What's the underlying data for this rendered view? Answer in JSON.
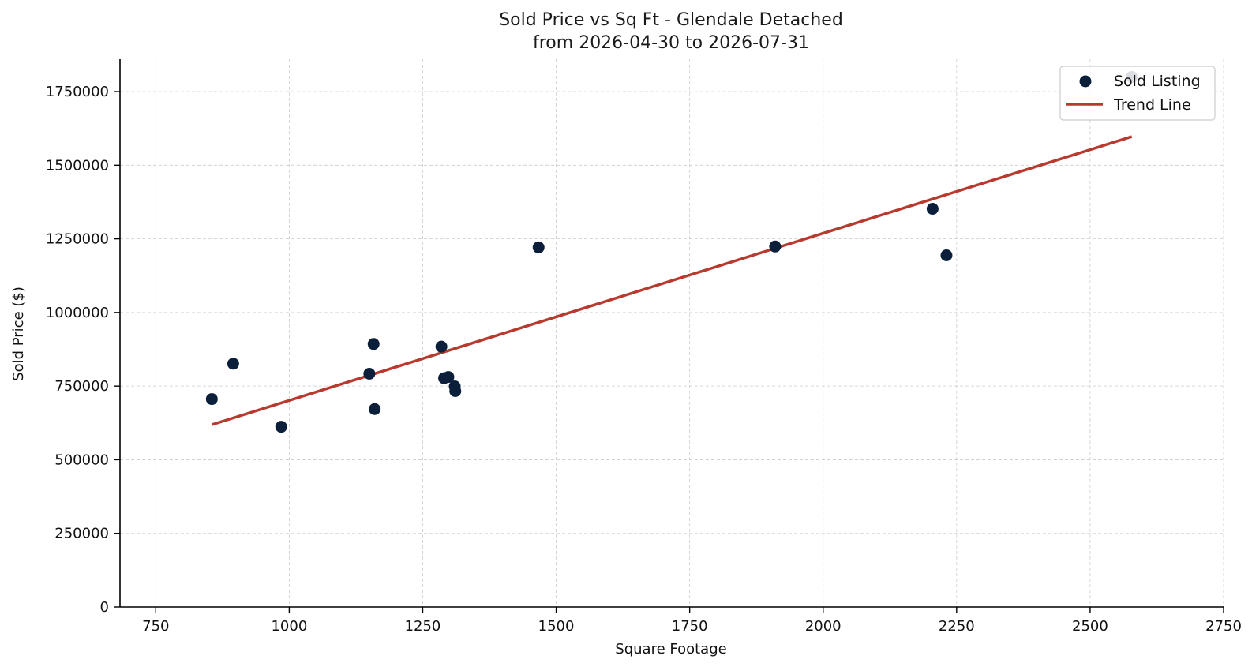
{
  "chart_data": {
    "type": "scatter",
    "title": "Sold Price vs Sq Ft - Glendale Detached",
    "subtitle": "from 2026-04-30 to 2026-07-31",
    "xlabel": "Square Footage",
    "ylabel": "Sold Price ($)",
    "xlim": [
      683,
      2750
    ],
    "ylim": [
      0,
      1860000
    ],
    "xticks": [
      750,
      1000,
      1250,
      1500,
      1750,
      2000,
      2250,
      2500,
      2750
    ],
    "yticks": [
      0,
      250000,
      500000,
      750000,
      1000000,
      1250000,
      1500000,
      1750000
    ],
    "grid": true,
    "legend_position": "top-right",
    "series": [
      {
        "name": "Sold Listing",
        "kind": "scatter",
        "color": "#0b1f3a",
        "points": [
          {
            "x": 855,
            "y": 706000
          },
          {
            "x": 895,
            "y": 826000
          },
          {
            "x": 985,
            "y": 612000
          },
          {
            "x": 1150,
            "y": 792000
          },
          {
            "x": 1158,
            "y": 893000
          },
          {
            "x": 1160,
            "y": 672000
          },
          {
            "x": 1285,
            "y": 884000
          },
          {
            "x": 1290,
            "y": 777000
          },
          {
            "x": 1298,
            "y": 781000
          },
          {
            "x": 1310,
            "y": 749000
          },
          {
            "x": 1311,
            "y": 733000
          },
          {
            "x": 1467,
            "y": 1221000
          },
          {
            "x": 1910,
            "y": 1224000
          },
          {
            "x": 2205,
            "y": 1352000
          },
          {
            "x": 2231,
            "y": 1194000
          },
          {
            "x": 2578,
            "y": 1800000
          }
        ]
      },
      {
        "name": "Trend Line",
        "kind": "line",
        "color": "#b83a2e",
        "points": [
          {
            "x": 855,
            "y": 619000
          },
          {
            "x": 2578,
            "y": 1597000
          }
        ]
      }
    ]
  }
}
